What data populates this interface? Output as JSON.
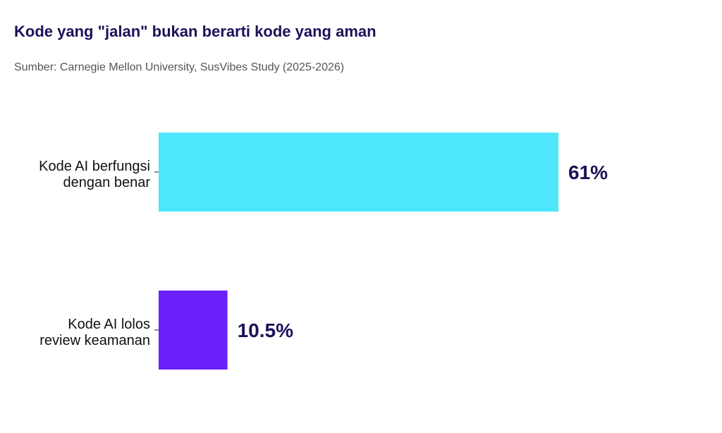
{
  "title": "Kode yang \"jalan\" bukan berarti kode yang aman",
  "subtitle": "Sumber: Carnegie Mellon University, SusVibes Study (2025-2026)",
  "chart_data": {
    "type": "bar",
    "orientation": "horizontal",
    "title": "Kode yang \"jalan\" bukan berarti kode yang aman",
    "subtitle": "Sumber: Carnegie Mellon University, SusVibes Study (2025-2026)",
    "categories": [
      [
        "Kode AI berfungsi",
        "dengan benar"
      ],
      [
        "Kode AI lolos",
        "review keamanan"
      ]
    ],
    "values": [
      61,
      10.5
    ],
    "value_labels": [
      "61%",
      "10.5%"
    ],
    "colors": [
      "#4ee6fb",
      "#6a1ffb"
    ],
    "xlim": [
      0,
      61
    ],
    "xlabel": "",
    "ylabel": "",
    "grid": false,
    "legend": "none"
  }
}
